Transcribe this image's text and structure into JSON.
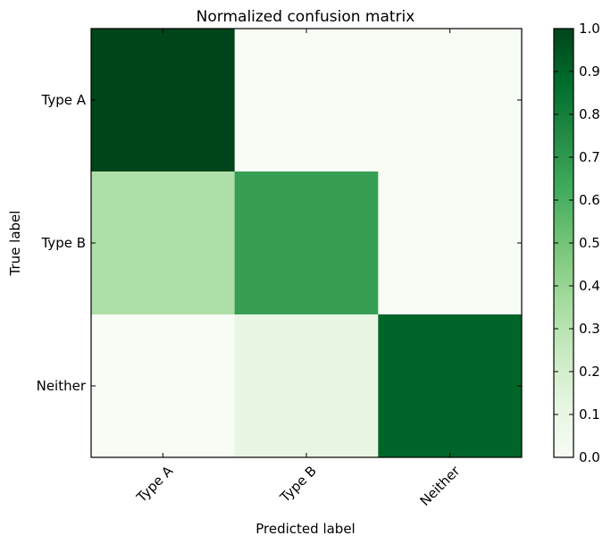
{
  "chart_data": {
    "type": "heatmap",
    "title": "Normalized confusion matrix",
    "xlabel": "Predicted label",
    "ylabel": "True label",
    "x_categories": [
      "Type A",
      "Type B",
      "Neither"
    ],
    "y_categories": [
      "Type A",
      "Type B",
      "Neither"
    ],
    "values": [
      [
        1.0,
        0.0,
        0.0
      ],
      [
        0.33,
        0.67,
        0.0
      ],
      [
        0.0,
        0.1,
        0.9
      ]
    ],
    "colormap": "Greens",
    "colorbar": {
      "range": [
        0.0,
        1.0
      ],
      "ticks": [
        "0.0",
        "0.1",
        "0.2",
        "0.3",
        "0.4",
        "0.5",
        "0.6",
        "0.7",
        "0.8",
        "0.9",
        "1.0"
      ]
    }
  }
}
